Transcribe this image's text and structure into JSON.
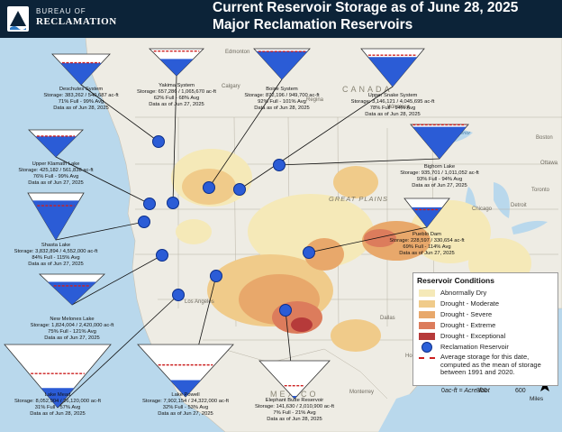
{
  "header": {
    "agency_small": "BUREAU OF",
    "agency_main": "RECLAMATION",
    "title_line1": "Current Reservoir Storage as of June 28, 2025",
    "title_line2": "Major Reclamation Reservoirs"
  },
  "map_labels": {
    "countries": [
      "CANADA",
      "MEXICO"
    ],
    "cities": [
      "Edmonton",
      "Calgary",
      "Winnipeg",
      "Regina",
      "Toronto",
      "Detroit",
      "Chicago",
      "Los Angeles",
      "Dallas",
      "Houston",
      "Monterrey",
      "Ottawa",
      "Boston"
    ],
    "regions": [
      "GREAT PLAINS",
      "Lake Superior"
    ]
  },
  "reservoirs": [
    {
      "name": "Deschutes System",
      "storage": "Storage: 383,262 / 540,687 ac-ft",
      "percent": "71% Full - 99% Avg",
      "date": "Data as of Jun 28, 2025",
      "fill": 0.71,
      "avg": 0.72
    },
    {
      "name": "Yakima System",
      "storage": "Storage: 657,286 / 1,065,670 ac-ft",
      "percent": "62% Full - 68% Avg",
      "date": "Data as of Jun 27, 2025",
      "fill": 0.62,
      "avg": 0.91
    },
    {
      "name": "Boise System",
      "storage": "Storage: 872,196 / 949,700 ac-ft",
      "percent": "92% Full - 101% Avg",
      "date": "Data as of Jun 28, 2025",
      "fill": 0.92,
      "avg": 0.91
    },
    {
      "name": "Upper Snake System",
      "storage": "Storage: 3,146,121 / 4,045,695 ac-ft",
      "percent": "78% Full - 94% Avg",
      "date": "Data as of Jun 28, 2025",
      "fill": 0.78,
      "avg": 0.83
    },
    {
      "name": "Upper Klamath Lake",
      "storage": "Storage: 425,182 / 561,838 ac-ft",
      "percent": "76% Full - 99% Avg",
      "date": "Data as of Jun 27, 2025",
      "fill": 0.76,
      "avg": 0.77
    },
    {
      "name": "Bighorn Lake",
      "storage": "Storage: 935,701 / 1,011,052 ac-ft",
      "percent": "93% Full - 94% Avg",
      "date": "Data as of Jun 27, 2025",
      "fill": 0.93,
      "avg": 0.99
    },
    {
      "name": "Shasta Lake",
      "storage": "Storage: 3,832,894 / 4,552,000 ac-ft",
      "percent": "84% Full - 115% Avg",
      "date": "Data as of Jun 27, 2025",
      "fill": 0.84,
      "avg": 0.73
    },
    {
      "name": "Pueblo Dam",
      "storage": "Storage: 228,597 / 330,654 ac-ft",
      "percent": "69% Full - 114% Avg",
      "date": "Data as of Jun 27, 2025",
      "fill": 0.69,
      "avg": 0.61
    },
    {
      "name": "New Melones Lake",
      "storage": "Storage: 1,824,004 / 2,420,000 ac-ft",
      "percent": "75% Full - 121% Avg",
      "date": "Data as of Jun 27, 2025",
      "fill": 0.75,
      "avg": 0.62
    },
    {
      "name": "Lake Mead",
      "storage": "Storage: 8,052,904 / 26,120,000 ac-ft",
      "percent": "31% Full - 57% Avg",
      "date": "Data as of Jun 28, 2025",
      "fill": 0.31,
      "avg": 0.54
    },
    {
      "name": "Lake Powell",
      "storage": "Storage: 7,902,154 / 24,322,000 ac-ft",
      "percent": "32% Full - 53% Avg",
      "date": "Data as of Jun 27, 2025",
      "fill": 0.32,
      "avg": 0.61
    },
    {
      "name": "Elephant Butte Reservoir",
      "storage": "Storage: 141,630 / 2,010,900 ac-ft",
      "percent": "7% Full - 21% Avg",
      "date": "Data as of Jun 28, 2025",
      "fill": 0.07,
      "avg": 0.34
    }
  ],
  "legend": {
    "title": "Reservoir Conditions",
    "items": [
      {
        "label": "Abnormally Dry",
        "color": "#f5e9b8"
      },
      {
        "label": "Drought - Moderate",
        "color": "#f0cb8a"
      },
      {
        "label": "Drought - Severe",
        "color": "#e8a86b"
      },
      {
        "label": "Drought - Extreme",
        "color": "#dc7c5c"
      },
      {
        "label": "Drought - Exceptional",
        "color": "#b63a3a"
      }
    ],
    "reservoir_label": "Reclamation Reservoir",
    "avg_label": "Average storage for this date, computed as the mean of storage between 1991 and 2020."
  },
  "footnote": "ac-ft = Acre-foot",
  "scale": {
    "ticks": [
      "0",
      "300",
      "600"
    ],
    "unit": "Miles"
  },
  "north_label": "N",
  "colors": {
    "reservoir_fill": "#2b5cd6",
    "avg_line": "#cc2020",
    "header_bg": "#0c2338",
    "water": "#b9d8ec",
    "land": "#eeece4"
  }
}
